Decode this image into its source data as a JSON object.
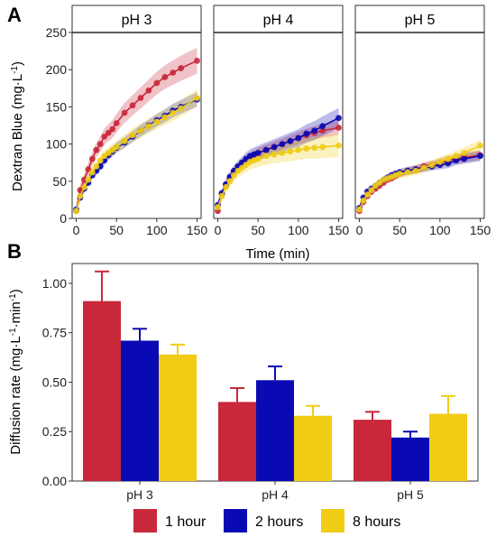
{
  "colors": {
    "1 hour": "#c8283a",
    "2 hours": "#0a0ab4",
    "8 hours": "#f0cc14"
  },
  "panel_a_label": "A",
  "panel_b_label": "B",
  "chart_data": [
    {
      "type": "line",
      "panel": "A",
      "facets": [
        "pH 3",
        "pH 4",
        "pH 5"
      ],
      "xlabel": "Time (min)",
      "ylabel": "Dextran Blue (mg·L",
      "ylabel_sup": "-1",
      "xlim": [
        -5,
        155
      ],
      "ylim": [
        0,
        250
      ],
      "xticks": [
        0,
        50,
        100,
        150
      ],
      "yticks": [
        0,
        50,
        100,
        150,
        200,
        250
      ],
      "x": [
        0,
        5,
        10,
        15,
        20,
        25,
        30,
        35,
        40,
        45,
        50,
        60,
        70,
        80,
        90,
        100,
        110,
        120,
        130,
        150
      ],
      "series_by_facet": [
        [
          {
            "name": "1 hour",
            "values": [
              10,
              38,
              52,
              66,
              80,
              92,
              100,
              110,
              115,
              120,
              128,
              142,
              152,
              162,
              172,
              182,
              190,
              196,
              202,
              212
            ],
            "ribbon": 18
          },
          {
            "name": "2 hours",
            "values": [
              12,
              28,
              40,
              48,
              58,
              64,
              70,
              78,
              85,
              90,
              95,
              102,
              110,
              118,
              125,
              132,
              138,
              145,
              150,
              160
            ],
            "ribbon": 10
          },
          {
            "name": "8 hours",
            "values": [
              10,
              30,
              42,
              52,
              62,
              70,
              78,
              84,
              88,
              92,
              96,
              104,
              112,
              118,
              124,
              130,
              136,
              142,
              148,
              162
            ],
            "ribbon": 12
          }
        ],
        [
          {
            "name": "1 hour",
            "values": [
              10,
              32,
              44,
              54,
              62,
              68,
              74,
              78,
              82,
              85,
              88,
              92,
              96,
              100,
              104,
              108,
              112,
              115,
              118,
              122
            ],
            "ribbon": 10
          },
          {
            "name": "2 hours",
            "values": [
              18,
              34,
              46,
              56,
              64,
              70,
              75,
              80,
              84,
              86,
              88,
              92,
              96,
              100,
              104,
              108,
              114,
              118,
              124,
              135
            ],
            "ribbon": 14
          },
          {
            "name": "8 hours",
            "values": [
              15,
              30,
              42,
              50,
              58,
              64,
              68,
              72,
              76,
              78,
              80,
              84,
              86,
              88,
              90,
              92,
              94,
              95,
              96,
              98
            ],
            "ribbon": 16
          }
        ],
        [
          {
            "name": "1 hour",
            "values": [
              10,
              22,
              30,
              36,
              40,
              44,
              48,
              52,
              54,
              57,
              60,
              64,
              66,
              70,
              72,
              75,
              78,
              80,
              82,
              85
            ],
            "ribbon": 7
          },
          {
            "name": "2 hours",
            "values": [
              14,
              28,
              36,
              40,
              44,
              48,
              52,
              55,
              58,
              60,
              62,
              64,
              66,
              68,
              70,
              72,
              74,
              78,
              80,
              84
            ],
            "ribbon": 7
          },
          {
            "name": "8 hours",
            "values": [
              12,
              24,
              32,
              38,
              44,
              48,
              52,
              54,
              56,
              58,
              60,
              62,
              64,
              68,
              72,
              76,
              80,
              84,
              88,
              98
            ],
            "ribbon": 8
          }
        ]
      ]
    },
    {
      "type": "bar",
      "panel": "B",
      "categories": [
        "pH 3",
        "pH 4",
        "pH 5"
      ],
      "ylabel": "Diffusion rate (mg·L",
      "ylabel_sup1": "-1",
      "ylabel_mid": "·min",
      "ylabel_sup2": "-1",
      "ylim": [
        0,
        1.1
      ],
      "yticks": [
        "0.00",
        "0.25",
        "0.50",
        "0.75",
        "1.00"
      ],
      "series": [
        {
          "name": "1 hour",
          "values": [
            0.91,
            0.4,
            0.31
          ],
          "errors": [
            0.15,
            0.07,
            0.04
          ]
        },
        {
          "name": "2 hours",
          "values": [
            0.71,
            0.51,
            0.22
          ],
          "errors": [
            0.06,
            0.07,
            0.03
          ]
        },
        {
          "name": "8 hours",
          "values": [
            0.64,
            0.33,
            0.34
          ],
          "errors": [
            0.05,
            0.05,
            0.09
          ]
        }
      ],
      "legend": [
        "1 hour",
        "2 hours",
        "8 hours"
      ],
      "legend_position": "bottom"
    }
  ]
}
